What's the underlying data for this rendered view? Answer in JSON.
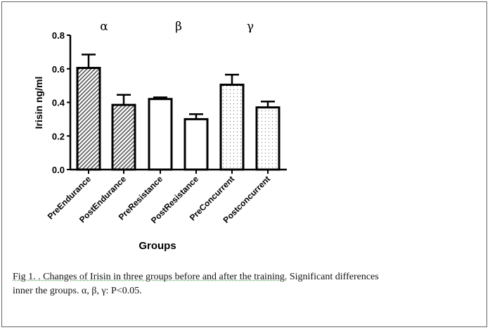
{
  "chart_data": {
    "type": "bar",
    "categories": [
      "PreEndurance",
      "PostEndurance",
      "PreResistance",
      "PostResistance",
      "PreConcurrent",
      "Postconcurrent"
    ],
    "values": [
      0.605,
      0.385,
      0.42,
      0.3,
      0.505,
      0.37
    ],
    "error_upper": [
      0.685,
      0.445,
      0.43,
      0.33,
      0.565,
      0.405
    ],
    "fills": [
      "hatch",
      "hatch",
      "white",
      "white",
      "dots",
      "dots"
    ],
    "xlabel": "Groups",
    "ylabel": "Irisin ng/ml",
    "ylim": [
      0,
      0.8
    ],
    "yticks": [
      "0.0",
      "0.2",
      "0.4",
      "0.6",
      "0.8"
    ],
    "annotations": [
      "α",
      "β",
      "γ"
    ],
    "grid": false
  },
  "caption": {
    "line1_a": "Fig 1. . Changes of Irisin in three groups before and after the training.",
    "line1_b": " Significant  differences",
    "line2": "inner the groups.  α, β, γ: P<0.05."
  }
}
